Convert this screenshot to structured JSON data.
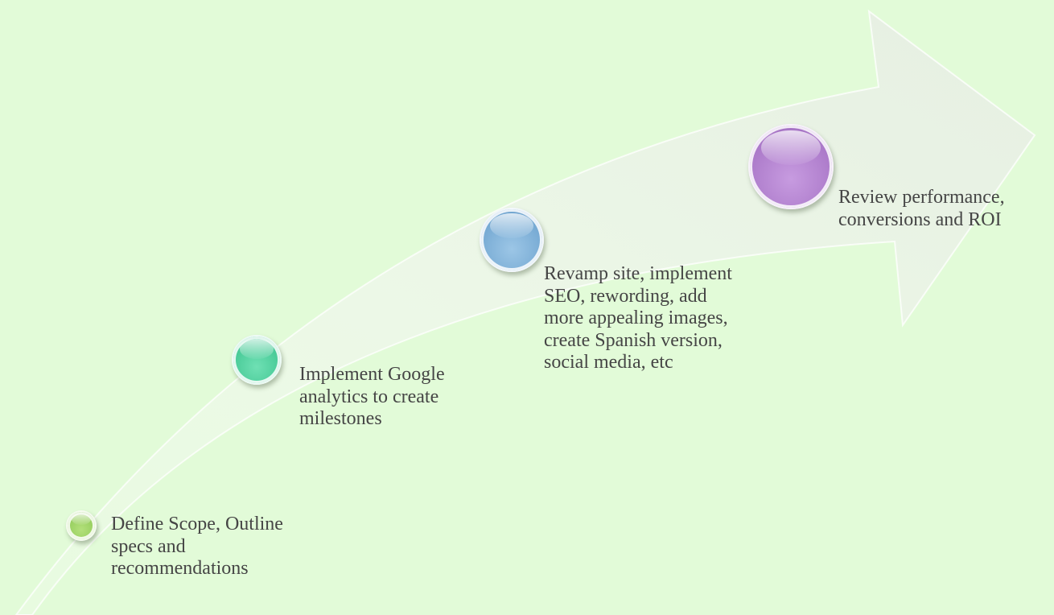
{
  "steps": [
    {
      "label": "Define Scope, Outline\nspecs and\nrecommendations",
      "color": "#93cc5c"
    },
    {
      "label": "Implement Google\nanalytics to create\nmilestones",
      "color": "#44c894"
    },
    {
      "label": "Revamp site, implement\nSEO, rewording, add\nmore appealing images,\ncreate Spanish version,\nsocial media, etc",
      "color": "#74a8d2"
    },
    {
      "label": "Review performance,\nconversions and ROI",
      "color": "#aa78c8"
    }
  ],
  "colors": {
    "background": "#e2fbd8",
    "arrow": "#e8f5e2",
    "text": "#454545"
  }
}
